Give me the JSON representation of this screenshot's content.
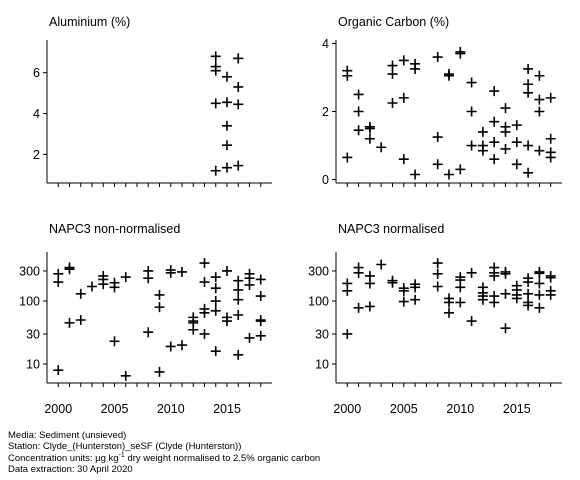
{
  "chart_data": [
    {
      "type": "scatter",
      "title": "Aluminium (%)",
      "scale": "linear",
      "xlim": [
        1999,
        2019
      ],
      "ylim": [
        0.6,
        7.6
      ],
      "yticks": [
        2,
        4,
        6
      ],
      "ytick_labels": [
        "2",
        "4",
        "6"
      ],
      "points": [
        [
          2014,
          6.8
        ],
        [
          2014,
          6.3
        ],
        [
          2014,
          6.1
        ],
        [
          2014,
          4.5
        ],
        [
          2014,
          1.2
        ],
        [
          2015,
          5.8
        ],
        [
          2015,
          4.55
        ],
        [
          2015,
          3.4
        ],
        [
          2015,
          2.45
        ],
        [
          2015,
          1.35
        ],
        [
          2016,
          6.7
        ],
        [
          2016,
          6.7
        ],
        [
          2016,
          5.3
        ],
        [
          2016,
          4.45
        ],
        [
          2016,
          1.45
        ]
      ]
    },
    {
      "type": "scatter",
      "title": "Organic Carbon (%)",
      "scale": "linear",
      "xlim": [
        1999,
        2019
      ],
      "ylim": [
        -0.1,
        4.1
      ],
      "yticks": [
        0,
        2,
        4
      ],
      "ytick_labels": [
        "0",
        "2",
        "4"
      ],
      "points": [
        [
          2000,
          3.2
        ],
        [
          2000,
          3.05
        ],
        [
          2000,
          0.65
        ],
        [
          2001,
          2.5
        ],
        [
          2001,
          2.0
        ],
        [
          2001,
          1.45
        ],
        [
          2002,
          1.55
        ],
        [
          2002,
          1.5
        ],
        [
          2002,
          1.2
        ],
        [
          2003,
          0.95
        ],
        [
          2004,
          3.35
        ],
        [
          2004,
          3.1
        ],
        [
          2004,
          2.25
        ],
        [
          2005,
          3.5
        ],
        [
          2005,
          2.4
        ],
        [
          2005,
          0.6
        ],
        [
          2006,
          3.4
        ],
        [
          2006,
          3.25
        ],
        [
          2006,
          0.15
        ],
        [
          2008,
          3.6
        ],
        [
          2008,
          1.25
        ],
        [
          2008,
          0.45
        ],
        [
          2009,
          3.1
        ],
        [
          2009,
          3.05
        ],
        [
          2009,
          0.15
        ],
        [
          2010,
          3.75
        ],
        [
          2010,
          3.7
        ],
        [
          2010,
          0.3
        ],
        [
          2011,
          2.85
        ],
        [
          2011,
          2.0
        ],
        [
          2011,
          1.0
        ],
        [
          2012,
          1.4
        ],
        [
          2012,
          1.0
        ],
        [
          2012,
          0.85
        ],
        [
          2013,
          2.6
        ],
        [
          2013,
          1.7
        ],
        [
          2013,
          1.1
        ],
        [
          2013,
          0.6
        ],
        [
          2014,
          2.1
        ],
        [
          2014,
          1.55
        ],
        [
          2014,
          1.4
        ],
        [
          2014,
          0.9
        ],
        [
          2015,
          1.6
        ],
        [
          2015,
          1.1
        ],
        [
          2015,
          0.45
        ],
        [
          2016,
          3.25
        ],
        [
          2016,
          2.8
        ],
        [
          2016,
          2.55
        ],
        [
          2016,
          1.0
        ],
        [
          2016,
          0.2
        ],
        [
          2017,
          3.05
        ],
        [
          2017,
          2.35
        ],
        [
          2017,
          2.0
        ],
        [
          2017,
          0.85
        ],
        [
          2018,
          2.4
        ],
        [
          2018,
          1.2
        ],
        [
          2018,
          0.8
        ],
        [
          2018,
          0.65
        ]
      ]
    },
    {
      "type": "scatter",
      "title": "NAPC3 non-normalised",
      "scale": "log",
      "xlim": [
        1999,
        2019
      ],
      "ylim": [
        5,
        600
      ],
      "yticks": [
        10,
        30,
        100,
        300
      ],
      "ytick_labels": [
        "10",
        "30",
        "100",
        "300"
      ],
      "points": [
        [
          2000,
          200
        ],
        [
          2000,
          270
        ],
        [
          2000,
          8
        ],
        [
          2001,
          320
        ],
        [
          2001,
          340
        ],
        [
          2001,
          45
        ],
        [
          2002,
          130
        ],
        [
          2002,
          50
        ],
        [
          2003,
          170
        ],
        [
          2004,
          250
        ],
        [
          2004,
          220
        ],
        [
          2004,
          185
        ],
        [
          2005,
          195
        ],
        [
          2005,
          165
        ],
        [
          2005,
          23
        ],
        [
          2006,
          240
        ],
        [
          2006,
          6.5
        ],
        [
          2008,
          300
        ],
        [
          2008,
          230
        ],
        [
          2008,
          32
        ],
        [
          2009,
          125
        ],
        [
          2009,
          80
        ],
        [
          2009,
          7.5
        ],
        [
          2010,
          310
        ],
        [
          2010,
          280
        ],
        [
          2010,
          19
        ],
        [
          2011,
          290
        ],
        [
          2011,
          20
        ],
        [
          2012,
          55
        ],
        [
          2012,
          48
        ],
        [
          2012,
          45
        ],
        [
          2012,
          35
        ],
        [
          2013,
          400
        ],
        [
          2013,
          200
        ],
        [
          2013,
          75
        ],
        [
          2013,
          65
        ],
        [
          2013,
          30
        ],
        [
          2014,
          240
        ],
        [
          2014,
          160
        ],
        [
          2014,
          100
        ],
        [
          2014,
          70
        ],
        [
          2014,
          16
        ],
        [
          2015,
          300
        ],
        [
          2015,
          55
        ],
        [
          2015,
          48
        ],
        [
          2016,
          210
        ],
        [
          2016,
          150
        ],
        [
          2016,
          105
        ],
        [
          2016,
          60
        ],
        [
          2016,
          14
        ],
        [
          2017,
          270
        ],
        [
          2017,
          230
        ],
        [
          2017,
          180
        ],
        [
          2017,
          26
        ],
        [
          2018,
          220
        ],
        [
          2018,
          120
        ],
        [
          2018,
          50
        ],
        [
          2018,
          48
        ],
        [
          2018,
          28
        ]
      ]
    },
    {
      "type": "scatter",
      "title": "NAPC3 normalised",
      "scale": "log",
      "xlim": [
        1999,
        2019
      ],
      "ylim": [
        5,
        600
      ],
      "yticks": [
        10,
        30,
        100,
        300
      ],
      "ytick_labels": [
        "10",
        "30",
        "100",
        "300"
      ],
      "points": [
        [
          2000,
          190
        ],
        [
          2000,
          145
        ],
        [
          2000,
          30
        ],
        [
          2001,
          340
        ],
        [
          2001,
          280
        ],
        [
          2001,
          78
        ],
        [
          2002,
          250
        ],
        [
          2002,
          190
        ],
        [
          2002,
          82
        ],
        [
          2003,
          380
        ],
        [
          2004,
          210
        ],
        [
          2004,
          195
        ],
        [
          2005,
          160
        ],
        [
          2005,
          145
        ],
        [
          2005,
          98
        ],
        [
          2006,
          185
        ],
        [
          2006,
          165
        ],
        [
          2006,
          105
        ],
        [
          2008,
          400
        ],
        [
          2008,
          270
        ],
        [
          2008,
          170
        ],
        [
          2009,
          110
        ],
        [
          2009,
          95
        ],
        [
          2009,
          65
        ],
        [
          2010,
          240
        ],
        [
          2010,
          215
        ],
        [
          2010,
          165
        ],
        [
          2010,
          95
        ],
        [
          2011,
          280
        ],
        [
          2011,
          48
        ],
        [
          2012,
          165
        ],
        [
          2012,
          135
        ],
        [
          2012,
          120
        ],
        [
          2012,
          105
        ],
        [
          2013,
          340
        ],
        [
          2013,
          280
        ],
        [
          2013,
          250
        ],
        [
          2013,
          120
        ],
        [
          2013,
          95
        ],
        [
          2014,
          290
        ],
        [
          2014,
          270
        ],
        [
          2014,
          130
        ],
        [
          2014,
          37
        ],
        [
          2015,
          175
        ],
        [
          2015,
          150
        ],
        [
          2015,
          125
        ],
        [
          2015,
          110
        ],
        [
          2016,
          230
        ],
        [
          2016,
          200
        ],
        [
          2016,
          130
        ],
        [
          2016,
          95
        ],
        [
          2016,
          85
        ],
        [
          2017,
          290
        ],
        [
          2017,
          275
        ],
        [
          2017,
          190
        ],
        [
          2017,
          125
        ],
        [
          2017,
          78
        ],
        [
          2018,
          250
        ],
        [
          2018,
          235
        ],
        [
          2018,
          145
        ],
        [
          2018,
          125
        ]
      ]
    }
  ],
  "x_axis": {
    "ticks": [
      2000,
      2005,
      2010,
      2015
    ],
    "tick_labels": [
      "2000",
      "2005",
      "2010",
      "2015"
    ]
  },
  "footer": {
    "media": "Media: Sediment (unsieved)",
    "station": "Station: Clyde_(Hunterston)_seSF (Clyde (Hunterston))",
    "units_prefix": "Concentration units:  µg kg",
    "units_sup": "-1",
    "units_suffix": " dry weight normalised to 2.5% organic carbon",
    "extraction": "Data extraction: 30 April 2020"
  }
}
